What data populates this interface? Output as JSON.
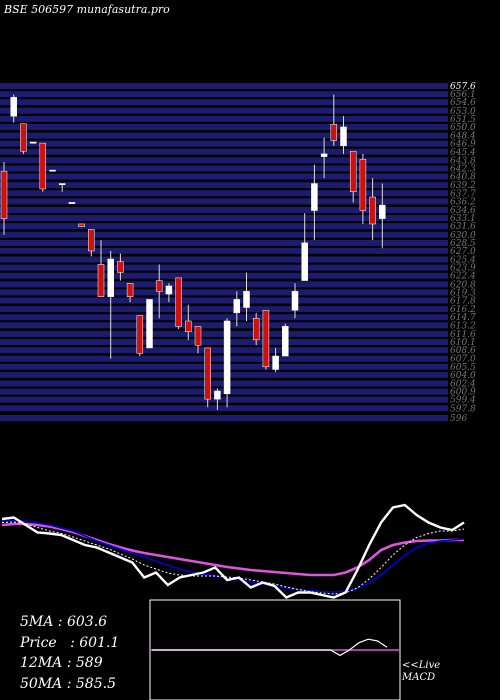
{
  "title": "BSE 506597 munafasutra.pro",
  "stats": [
    {
      "label": "5MA",
      "value": "603.6"
    },
    {
      "label": "Price",
      "value": "601.1"
    },
    {
      "label": "12MA",
      "value": "589"
    },
    {
      "label": "50MA",
      "value": "585.5"
    }
  ],
  "macd_label": [
    "<<Live",
    "MACD"
  ],
  "colors": {
    "background": "#000000",
    "grid_line": "#1c1c6e",
    "up_candle": "#ffffff",
    "down_candle": "#cc1111",
    "short_ma": "#0000dd",
    "long_ma": "#dd55dd",
    "macd_line": "#ffffff"
  },
  "chart_data": {
    "type": "candlestick",
    "price_axis": {
      "min": 596,
      "max": 657.6,
      "top_label": "657.6",
      "bottom_label": "596"
    },
    "grid_levels": [
      657.6,
      656.1,
      654.6,
      653.0,
      651.5,
      650.0,
      648.4,
      646.9,
      645.4,
      643.8,
      642.3,
      640.8,
      639.2,
      637.7,
      636.2,
      634.6,
      633.1,
      631.6,
      630.0,
      628.5,
      627.0,
      625.4,
      623.9,
      622.4,
      620.8,
      619.3,
      617.8,
      616.2,
      614.7,
      613.2,
      611.6,
      610.1,
      608.6,
      607.0,
      605.5,
      604.0,
      602.4,
      600.9,
      599.4,
      597.8,
      596.0
    ],
    "candles": [
      {
        "o": 641.8,
        "h": 643.5,
        "l": 630.0,
        "c": 633.0
      },
      {
        "o": 652.0,
        "h": 656.0,
        "l": 650.8,
        "c": 655.5
      },
      {
        "o": 650.6,
        "h": 650.6,
        "l": 645.0,
        "c": 645.5
      },
      {
        "o": 647.2,
        "h": 647.2,
        "l": 647.2,
        "c": 647.2
      },
      {
        "o": 647.0,
        "h": 647.0,
        "l": 638.0,
        "c": 638.5
      },
      {
        "o": 642.0,
        "h": 642.0,
        "l": 642.0,
        "c": 642.0
      },
      {
        "o": 639.5,
        "h": 639.5,
        "l": 638.0,
        "c": 639.5
      },
      {
        "o": 636.0,
        "h": 636.0,
        "l": 636.0,
        "c": 636.0
      },
      {
        "o": 632.0,
        "h": 632.0,
        "l": 631.5,
        "c": 631.5
      },
      {
        "o": 631.0,
        "h": 631.0,
        "l": 626.0,
        "c": 627.0
      },
      {
        "o": 624.5,
        "h": 629.0,
        "l": 618.5,
        "c": 618.5
      },
      {
        "o": 618.5,
        "h": 627.0,
        "l": 607.0,
        "c": 625.5
      },
      {
        "o": 625.0,
        "h": 626.5,
        "l": 621.5,
        "c": 623.0
      },
      {
        "o": 621.0,
        "h": 621.0,
        "l": 617.5,
        "c": 618.5
      },
      {
        "o": 615.0,
        "h": 615.0,
        "l": 607.5,
        "c": 608.0
      },
      {
        "o": 609.0,
        "h": 618.0,
        "l": 609.0,
        "c": 618.0
      },
      {
        "o": 621.5,
        "h": 624.5,
        "l": 614.5,
        "c": 619.5
      },
      {
        "o": 619.0,
        "h": 621.0,
        "l": 617.5,
        "c": 620.5
      },
      {
        "o": 622.0,
        "h": 622.0,
        "l": 612.5,
        "c": 613.0
      },
      {
        "o": 614.0,
        "h": 617.0,
        "l": 610.5,
        "c": 612.0
      },
      {
        "o": 613.0,
        "h": 613.0,
        "l": 608.0,
        "c": 609.5
      },
      {
        "o": 609.0,
        "h": 609.0,
        "l": 598.0,
        "c": 599.5
      },
      {
        "o": 599.5,
        "h": 601.5,
        "l": 597.5,
        "c": 601.0
      },
      {
        "o": 600.5,
        "h": 614.5,
        "l": 598.0,
        "c": 614.0
      },
      {
        "o": 615.5,
        "h": 619.5,
        "l": 613.0,
        "c": 618.0
      },
      {
        "o": 616.5,
        "h": 623.0,
        "l": 614.0,
        "c": 619.5
      },
      {
        "o": 614.5,
        "h": 615.5,
        "l": 609.5,
        "c": 610.5
      },
      {
        "o": 616.0,
        "h": 616.0,
        "l": 605.0,
        "c": 605.5
      },
      {
        "o": 605.0,
        "h": 609.0,
        "l": 604.5,
        "c": 607.5
      },
      {
        "o": 607.5,
        "h": 613.5,
        "l": 607.5,
        "c": 613.0
      },
      {
        "o": 616.0,
        "h": 621.0,
        "l": 614.5,
        "c": 619.5
      },
      {
        "o": 621.5,
        "h": 634.0,
        "l": 621.5,
        "c": 628.5
      },
      {
        "o": 634.5,
        "h": 643.0,
        "l": 629.0,
        "c": 639.5
      },
      {
        "o": 644.5,
        "h": 648.0,
        "l": 640.5,
        "c": 645.0
      },
      {
        "o": 650.5,
        "h": 656.0,
        "l": 646.5,
        "c": 647.5
      },
      {
        "o": 646.5,
        "h": 652.0,
        "l": 645.0,
        "c": 650.0
      },
      {
        "o": 645.5,
        "h": 645.5,
        "l": 636.0,
        "c": 638.0
      },
      {
        "o": 644.0,
        "h": 645.0,
        "l": 632.0,
        "c": 634.5
      },
      {
        "o": 637.0,
        "h": 640.5,
        "l": 629.0,
        "c": 632.0
      },
      {
        "o": 633.0,
        "h": 639.5,
        "l": 627.5,
        "c": 635.5
      }
    ],
    "ma_lines": [
      {
        "color": "white",
        "values": [
          0.62,
          0.65,
          0.5,
          0.35,
          0.33,
          0.3,
          0.2,
          0.1,
          0.05,
          -0.05,
          -0.15,
          -0.25,
          -0.55,
          -0.45,
          -0.7,
          -0.55,
          -0.5,
          -0.45,
          -0.35,
          -0.6,
          -0.55,
          -0.75,
          -0.65,
          -0.72,
          -0.95,
          -0.85,
          -0.85,
          -0.9,
          -0.95,
          -0.85,
          -0.4,
          0.1,
          0.55,
          0.85,
          0.9,
          0.7,
          0.55,
          0.45,
          0.4,
          0.55
        ]
      },
      {
        "color": "white-dashed",
        "values": [
          0.55,
          0.56,
          0.52,
          0.45,
          0.38,
          0.33,
          0.26,
          0.18,
          0.1,
          0.02,
          -0.08,
          -0.18,
          -0.3,
          -0.38,
          -0.46,
          -0.5,
          -0.52,
          -0.52,
          -0.52,
          -0.54,
          -0.56,
          -0.6,
          -0.64,
          -0.68,
          -0.74,
          -0.79,
          -0.83,
          -0.86,
          -0.88,
          -0.86,
          -0.76,
          -0.58,
          -0.35,
          -0.1,
          0.1,
          0.25,
          0.33,
          0.38,
          0.38,
          0.42
        ]
      },
      {
        "color": "blue",
        "values": [
          0.58,
          0.59,
          0.58,
          0.54,
          0.5,
          0.44,
          0.38,
          0.28,
          0.18,
          0.1,
          0.02,
          -0.06,
          -0.14,
          -0.22,
          -0.3,
          -0.38,
          -0.44,
          -0.48,
          -0.52,
          -0.56,
          -0.6,
          -0.64,
          -0.68,
          -0.72,
          -0.76,
          -0.79,
          -0.81,
          -0.83,
          -0.84,
          -0.82,
          -0.76,
          -0.66,
          -0.5,
          -0.3,
          -0.1,
          0.05,
          0.14,
          0.18,
          0.2,
          0.22
        ]
      },
      {
        "color": "magenta",
        "values": [
          0.5,
          0.52,
          0.52,
          0.5,
          0.47,
          0.42,
          0.36,
          0.28,
          0.2,
          0.12,
          0.05,
          -0.01,
          -0.06,
          -0.1,
          -0.14,
          -0.18,
          -0.22,
          -0.26,
          -0.3,
          -0.34,
          -0.37,
          -0.4,
          -0.42,
          -0.44,
          -0.46,
          -0.48,
          -0.5,
          -0.5,
          -0.5,
          -0.45,
          -0.35,
          -0.2,
          0.0,
          0.1,
          0.15,
          0.18,
          0.19,
          0.19,
          0.2,
          0.2
        ]
      }
    ],
    "macd": {
      "line": [
        0,
        0,
        0,
        0,
        0,
        0,
        0,
        0,
        0,
        0,
        0,
        0,
        0,
        0,
        0,
        0,
        0,
        0,
        0,
        0,
        -0.3,
        0,
        0.4,
        0.6,
        0.5,
        0.15
      ],
      "signal": [
        0,
        0,
        0,
        0,
        0,
        0,
        0,
        0,
        0,
        0,
        0,
        0,
        0,
        0,
        0,
        0,
        0,
        0,
        0,
        0,
        0,
        0,
        0,
        0,
        0,
        0
      ]
    }
  }
}
